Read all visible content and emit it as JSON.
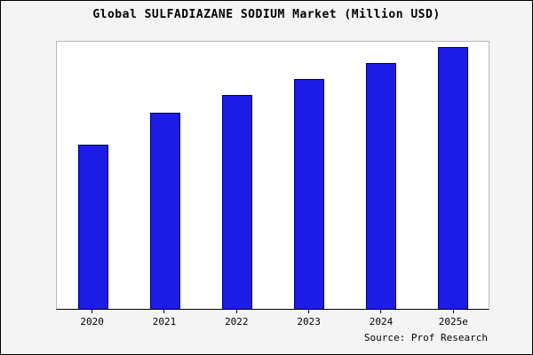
{
  "title": "Global SULFADIAZANE SODIUM Market (Million USD)",
  "source": "Source: Prof Research",
  "colors": {
    "bar_fill": "#1c1ce6",
    "bar_edge": "#000060",
    "frame_bg": "#f4f4f4",
    "plot_bg": "#ffffff",
    "plot_border": "#b8b8b8"
  },
  "chart_data": {
    "type": "bar",
    "categories": [
      "2020",
      "2021",
      "2022",
      "2023",
      "2024",
      "2025e"
    ],
    "values": [
      62,
      74,
      81,
      87,
      93,
      99
    ],
    "title": "Global SULFADIAZANE SODIUM Market (Million USD)",
    "xlabel": "",
    "ylabel": "",
    "ylim": [
      0,
      101
    ],
    "grid": false,
    "legend": false,
    "annotations": [
      "Source: Prof Research"
    ]
  }
}
